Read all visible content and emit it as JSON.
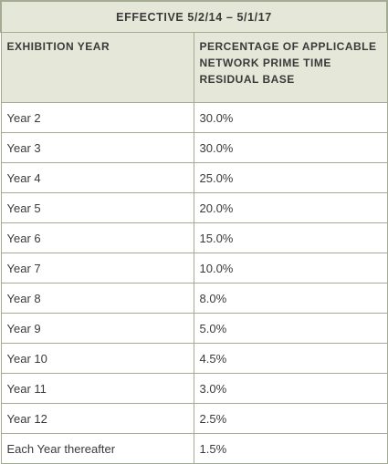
{
  "table": {
    "title": "EFFECTIVE 5/2/14 – 5/1/17",
    "headers": [
      "EXHIBITION YEAR",
      "PERCENTAGE OF APPLICABLE NETWORK PRIME TIME RESIDUAL BASE"
    ],
    "rows": [
      [
        "Year 2",
        "30.0%"
      ],
      [
        "Year 3",
        "30.0%"
      ],
      [
        "Year 4",
        "25.0%"
      ],
      [
        "Year 5",
        "20.0%"
      ],
      [
        "Year 6",
        "15.0%"
      ],
      [
        "Year 7",
        "10.0%"
      ],
      [
        "Year 8",
        "8.0%"
      ],
      [
        "Year 9",
        "5.0%"
      ],
      [
        "Year 10",
        "4.5%"
      ],
      [
        "Year 11",
        "3.0%"
      ],
      [
        "Year 12",
        "2.5%"
      ],
      [
        "Each Year thereafter",
        "1.5%"
      ]
    ]
  }
}
